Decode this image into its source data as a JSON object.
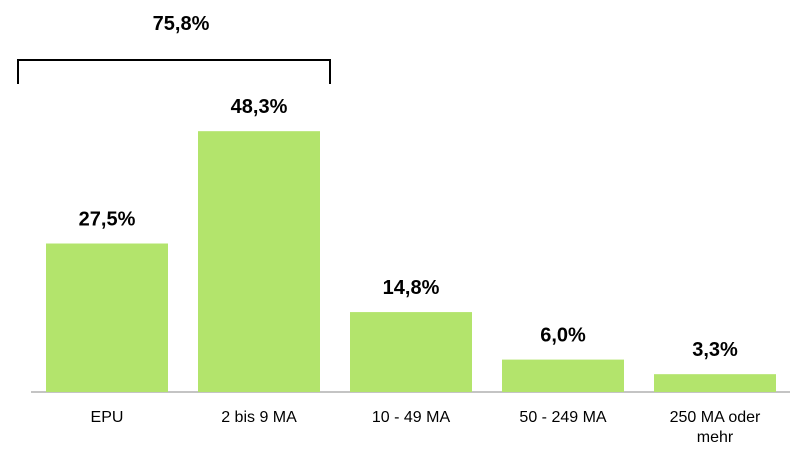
{
  "chart_data": {
    "type": "bar",
    "categories": [
      "EPU",
      "2 bis 9 MA",
      "10 - 49 MA",
      "50 - 249 MA",
      "250 MA oder mehr"
    ],
    "values": [
      27.5,
      48.3,
      14.8,
      6.0,
      3.3
    ],
    "value_labels": [
      "27,5%",
      "48,3%",
      "14,8%",
      "6,0%",
      "3,3%"
    ],
    "color": "#b3e46c",
    "annotation": "75,8%"
  }
}
